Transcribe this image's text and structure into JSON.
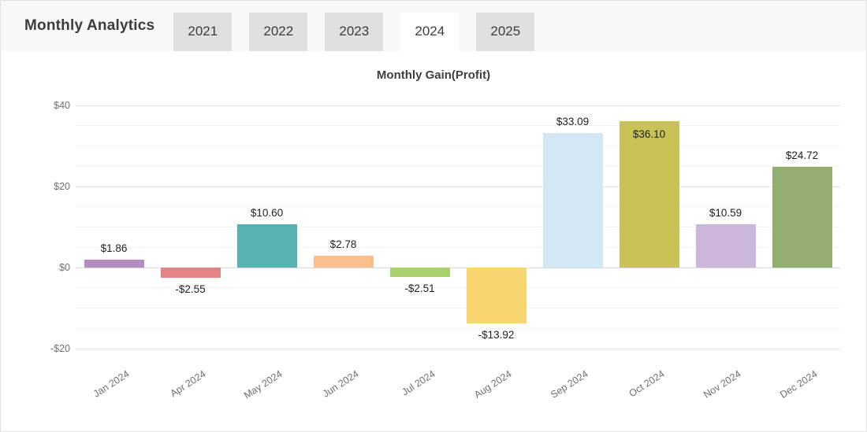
{
  "header": {
    "title": "Monthly Analytics",
    "tabs": [
      {
        "label": "2021",
        "active": false
      },
      {
        "label": "2022",
        "active": false
      },
      {
        "label": "2023",
        "active": false
      },
      {
        "label": "2024",
        "active": true
      },
      {
        "label": "2025",
        "active": false
      }
    ]
  },
  "chart_data": {
    "type": "bar",
    "title": "Monthly Gain(Profit)",
    "categories": [
      "Jan 2024",
      "Apr 2024",
      "May 2024",
      "Jun 2024",
      "Jul 2024",
      "Aug 2024",
      "Sep 2024",
      "Oct 2024",
      "Nov 2024",
      "Dec 2024"
    ],
    "values": [
      1.86,
      -2.55,
      10.6,
      2.78,
      -2.51,
      -13.92,
      33.09,
      36.1,
      10.59,
      24.72
    ],
    "value_labels": [
      "$1.86",
      "-$2.55",
      "$10.60",
      "$2.78",
      "-$2.51",
      "-$13.92",
      "$33.09",
      "$36.10",
      "$10.59",
      "$24.72"
    ],
    "bar_colors": [
      "#b38cc3",
      "#e28586",
      "#58b2b2",
      "#fbbe8c",
      "#a9d16c",
      "#f7d66f",
      "#d4e7f5",
      "#c9c356",
      "#cab7da",
      "#94ae71"
    ],
    "label_inside": [
      false,
      false,
      false,
      false,
      false,
      false,
      false,
      true,
      false,
      false
    ],
    "xlabel": "",
    "ylabel": "",
    "ylim": [
      -23,
      44
    ],
    "yticks": [
      {
        "value": 40,
        "label": "$40"
      },
      {
        "value": 20,
        "label": "$20"
      },
      {
        "value": 0,
        "label": "$0"
      },
      {
        "value": -20,
        "label": "-$20"
      }
    ],
    "minor_tick_step": 5,
    "grid": true,
    "legend": "none"
  },
  "colors": {
    "header_bg": "#f8f8f8",
    "tab_bg": "#e0e0e0",
    "tab_active_bg": "#ffffff",
    "major_grid": "#e3e3e3",
    "minor_grid": "#f3f3f3"
  }
}
